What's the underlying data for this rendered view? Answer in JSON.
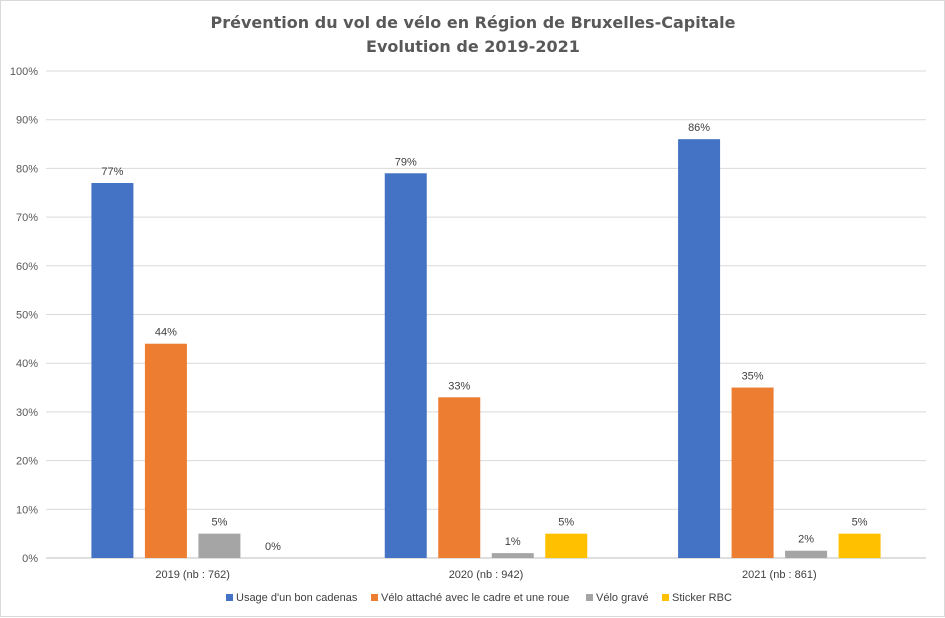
{
  "chart_data": {
    "type": "bar",
    "title": "Prévention du vol de vélo en Région de Bruxelles-Capitale",
    "subtitle": "Evolution de 2019-2021",
    "categories": [
      "2019 (nb : 762)",
      "2020 (nb : 942)",
      "2021 (nb : 861)"
    ],
    "series": [
      {
        "name": "Usage d'un bon cadenas",
        "color": "#4472C4",
        "values": [
          77,
          79,
          86
        ],
        "labels": [
          "77%",
          "79%",
          "86%"
        ]
      },
      {
        "name": "Vélo attaché avec le cadre et une roue",
        "color": "#ED7D31",
        "values": [
          44,
          33,
          35
        ],
        "labels": [
          "44%",
          "33%",
          "35%"
        ]
      },
      {
        "name": "Vélo gravé",
        "color": "#A5A5A5",
        "values": [
          5,
          1,
          1.5
        ],
        "labels": [
          "5%",
          "1%",
          "2%"
        ]
      },
      {
        "name": "Sticker RBC",
        "color": "#FFC000",
        "values": [
          0,
          5,
          5
        ],
        "labels": [
          "0%",
          "5%",
          "5%"
        ]
      }
    ],
    "yticks": [
      "0%",
      "10%",
      "20%",
      "30%",
      "40%",
      "50%",
      "60%",
      "70%",
      "80%",
      "90%",
      "100%"
    ],
    "ylim": [
      0,
      100
    ],
    "grid": true,
    "legend_position": "bottom"
  }
}
